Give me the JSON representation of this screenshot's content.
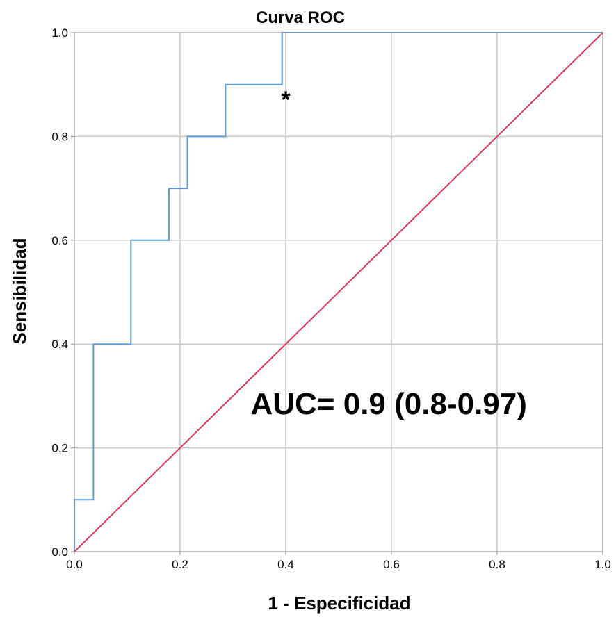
{
  "chart_data": {
    "type": "line",
    "title": "Curva ROC",
    "xlabel": "1 - Especificidad",
    "ylabel": "Sensibilidad",
    "xlim": [
      0,
      1
    ],
    "ylim": [
      0,
      1
    ],
    "xticks": [
      "0.0",
      "0.2",
      "0.4",
      "0.6",
      "0.8",
      "1.0"
    ],
    "yticks": [
      "0.0",
      "0.2",
      "0.4",
      "0.6",
      "0.8",
      "1.0"
    ],
    "grid": true,
    "series": [
      {
        "color": "#5b9bd5",
        "step": true,
        "x": [
          0.0,
          0.0,
          0.036,
          0.036,
          0.107,
          0.107,
          0.179,
          0.179,
          0.214,
          0.214,
          0.286,
          0.286,
          0.393,
          0.393,
          0.393,
          1.0
        ],
        "y": [
          0.0,
          0.1,
          0.1,
          0.4,
          0.4,
          0.6,
          0.6,
          0.7,
          0.7,
          0.8,
          0.8,
          0.9,
          0.9,
          0.9,
          1.0,
          1.0
        ]
      },
      {
        "color": "#e0345a",
        "x": [
          0,
          1
        ],
        "y": [
          0,
          1
        ]
      }
    ],
    "annotations": [
      {
        "text": "AUC= 0.9 (0.8-0.97)",
        "x": 0.595,
        "y": 0.265,
        "kind": "auc"
      },
      {
        "text": "*",
        "x": 0.4,
        "y": 0.885,
        "kind": "marker"
      }
    ]
  }
}
